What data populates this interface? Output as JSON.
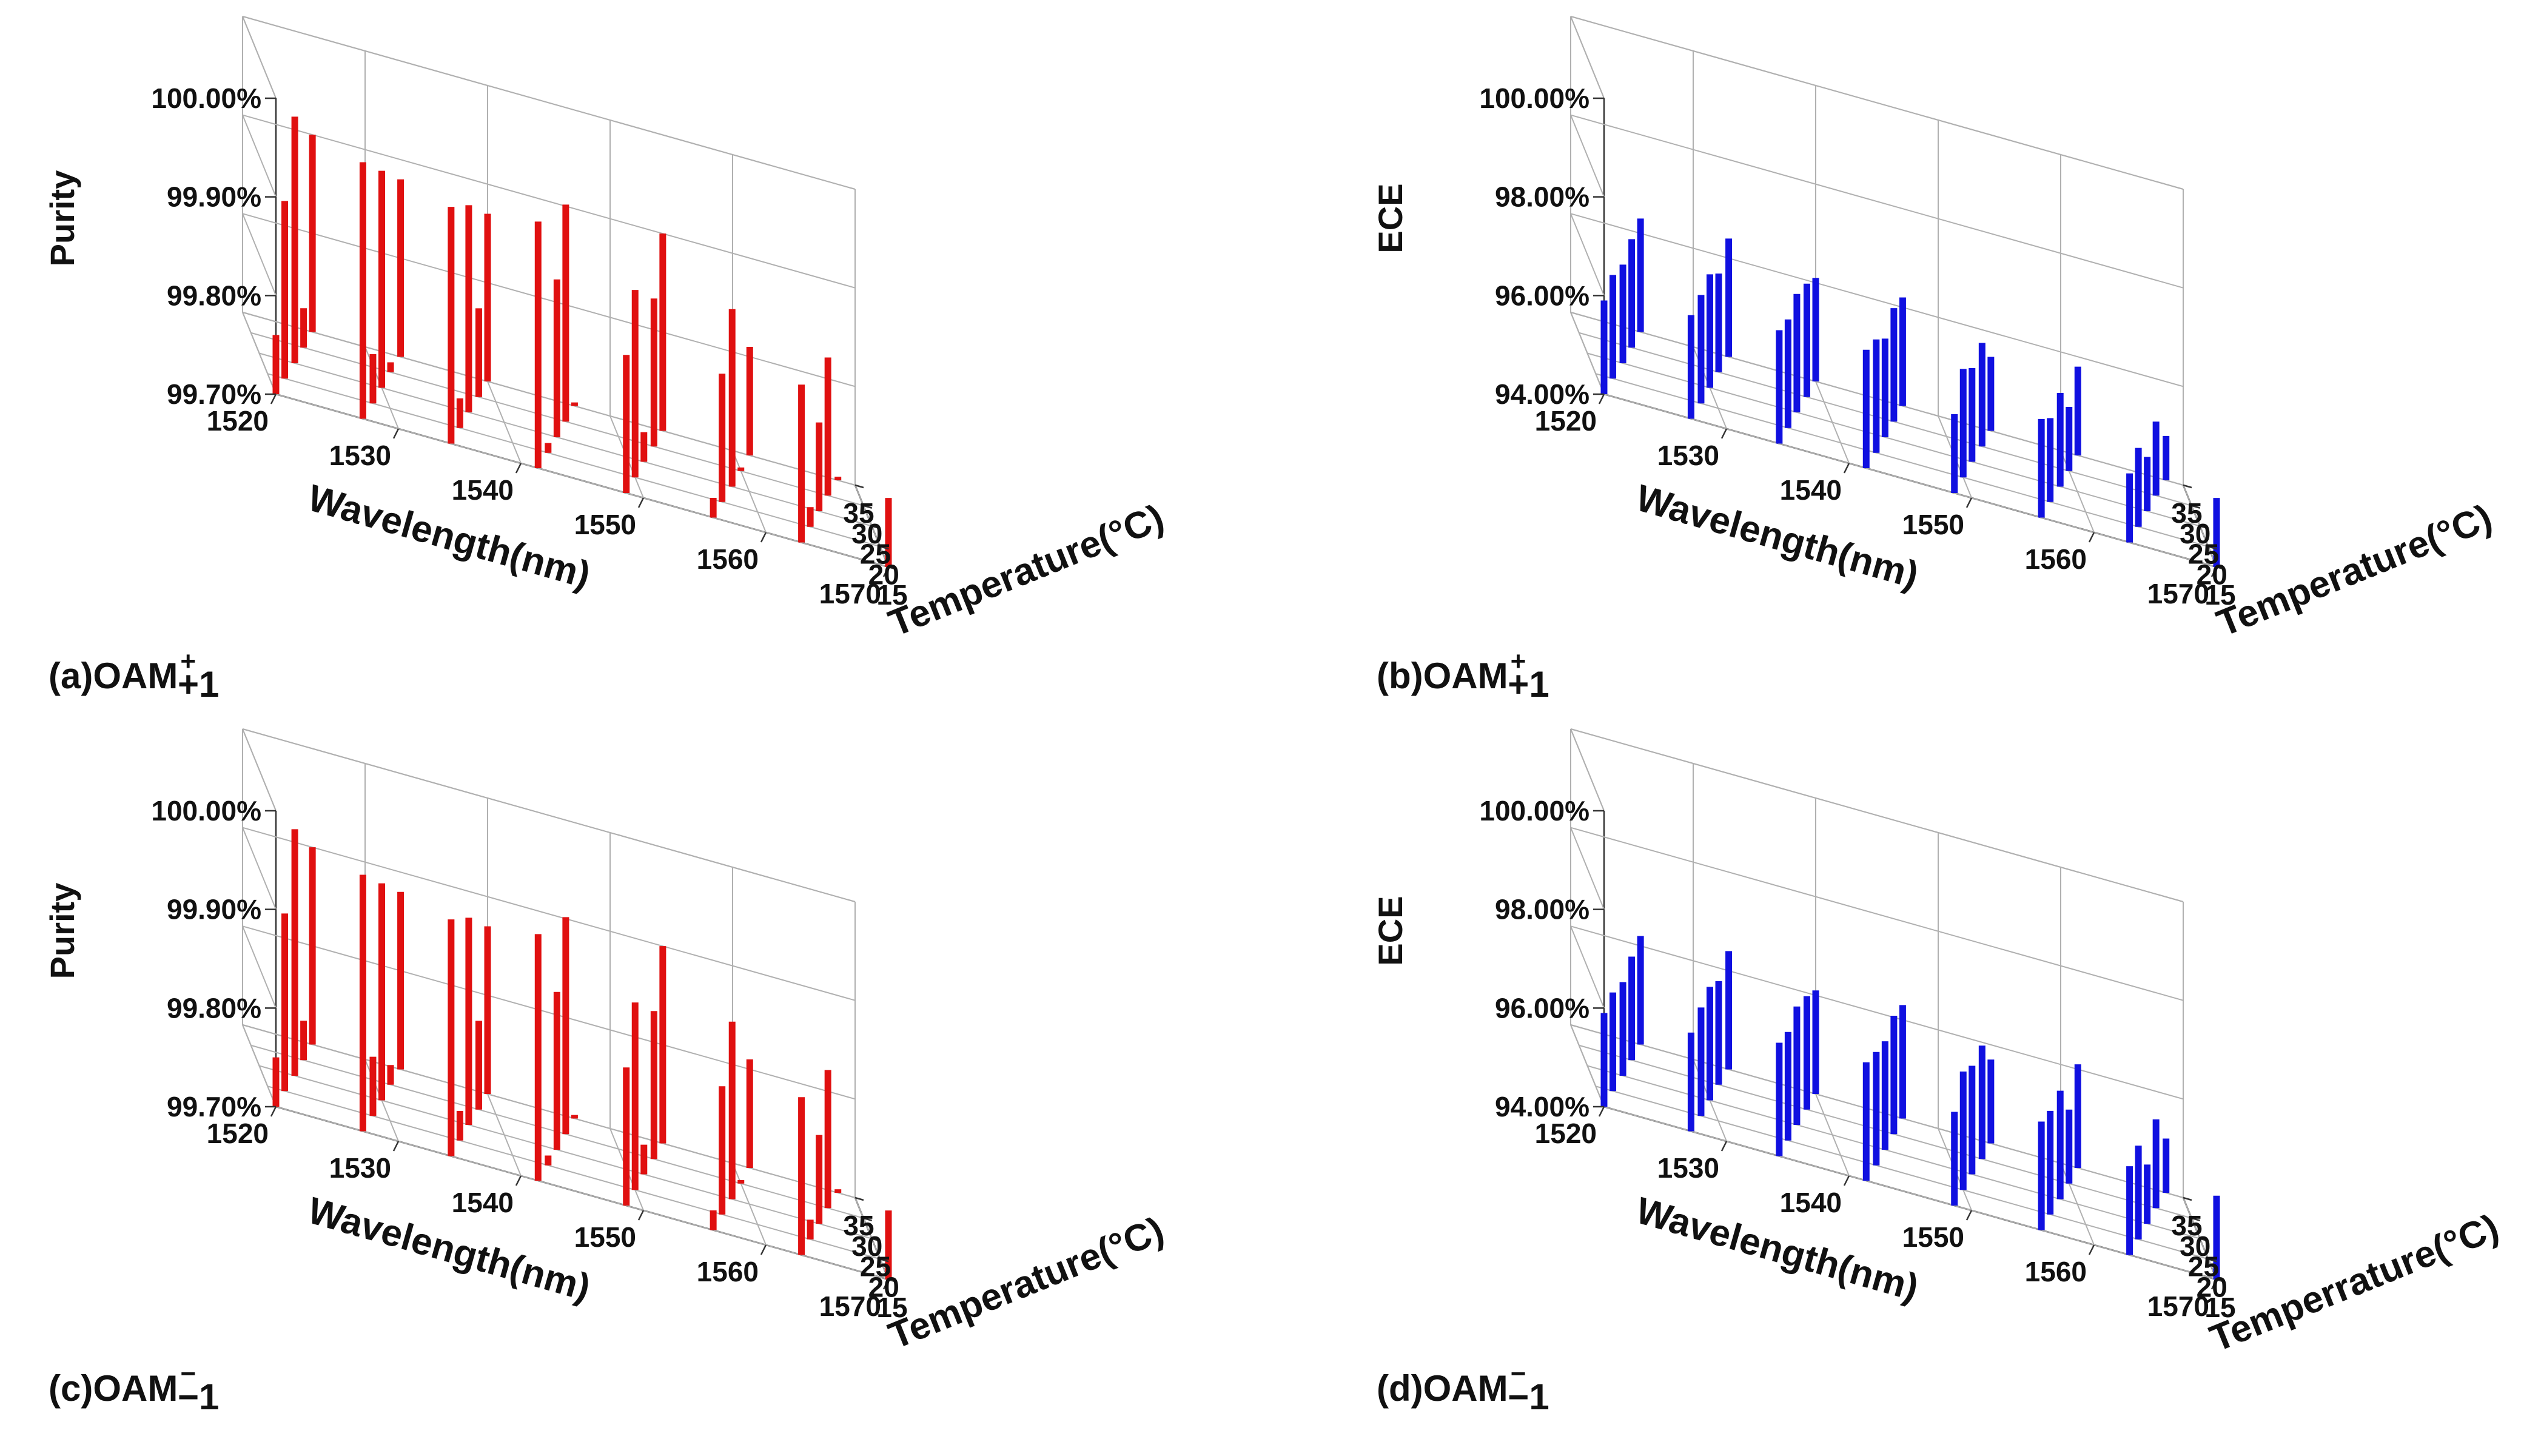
{
  "chart_data": [
    {
      "panel": "a",
      "type": "bar3d",
      "caption": {
        "prefix": "(a)OAM",
        "sup": "+",
        "sub": "+1"
      },
      "ylabel": "Purity",
      "xlabel": "Wavelength(nm)",
      "zlabel": "Temperature(°C)",
      "ylim": [
        99.7,
        100.0
      ],
      "yticks": [
        "100.00%",
        "99.90%",
        "99.80%",
        "99.70%"
      ],
      "xticks": [
        "1520",
        "1530",
        "1540",
        "1550",
        "1560",
        "1570"
      ],
      "zticks": [
        "15",
        "20",
        "25",
        "30",
        "35"
      ],
      "color": "#e01010",
      "wavelengths": [
        1520,
        1521.4,
        1522.9,
        1524.3,
        1525.7,
        1527.1,
        1528.6,
        1530,
        1531.4,
        1532.9,
        1534.3,
        1535.7,
        1537.1,
        1538.6,
        1540,
        1541.4,
        1542.9,
        1544.3,
        1545.7,
        1547.1,
        1548.6,
        1550,
        1551.4,
        1552.9,
        1554.3,
        1555.7,
        1557.1,
        1558.6,
        1560,
        1561.4,
        1562.9,
        1564.3,
        1565.7,
        1567.1,
        1568.6,
        1570
      ],
      "temperatures": [
        15,
        20,
        25,
        30,
        35
      ],
      "values": [
        99.76,
        99.88,
        99.95,
        99.74,
        99.9,
        99.96,
        99.75,
        99.92,
        99.71,
        99.88,
        99.94,
        99.73,
        99.91,
        99.79,
        99.87,
        99.95,
        99.71,
        99.86,
        99.92,
        99.7,
        99.84,
        99.89,
        99.73,
        99.85,
        99.9,
        99.72,
        99.83,
        99.88,
        99.7,
        99.81,
        99.86,
        99.72,
        99.79,
        99.84,
        99.7,
        99.77
      ]
    },
    {
      "panel": "b",
      "type": "bar3d",
      "caption": {
        "prefix": "(b)OAM",
        "sup": "+",
        "sub": "+1"
      },
      "ylabel": "ECE",
      "xlabel": "Wavelength(nm)",
      "zlabel": "Temperature(°C)",
      "ylim": [
        94.0,
        100.0
      ],
      "yticks": [
        "100.00%",
        "98.00%",
        "96.00%",
        "94.00%"
      ],
      "xticks": [
        "1520",
        "1530",
        "1540",
        "1550",
        "1560",
        "1570"
      ],
      "zticks": [
        "15",
        "20",
        "25",
        "30",
        "35"
      ],
      "color": "#1010e0",
      "wavelengths": [
        1520,
        1521.4,
        1522.9,
        1524.3,
        1525.7,
        1527.1,
        1528.6,
        1530,
        1531.4,
        1532.9,
        1534.3,
        1535.7,
        1537.1,
        1538.6,
        1540,
        1541.4,
        1542.9,
        1544.3,
        1545.7,
        1547.1,
        1548.6,
        1550,
        1551.4,
        1552.9,
        1554.3,
        1555.7,
        1557.1,
        1558.6,
        1560,
        1561.4,
        1562.9,
        1564.3,
        1565.7,
        1567.1,
        1568.6,
        1570
      ],
      "temperatures": [
        15,
        20,
        25,
        30,
        35
      ],
      "values": [
        95.9,
        96.1,
        96.0,
        96.2,
        96.3,
        96.1,
        96.2,
        96.3,
        96.0,
        96.4,
        96.3,
        96.2,
        96.4,
        96.3,
        96.1,
        96.4,
        96.3,
        96.0,
        96.3,
        96.2,
        95.6,
        96.2,
        95.9,
        96.1,
        95.5,
        96.0,
        95.7,
        95.9,
        95.3,
        95.8,
        95.4,
        95.6,
        95.1,
        95.5,
        94.9,
        95.4
      ]
    },
    {
      "panel": "c",
      "type": "bar3d",
      "caption": {
        "prefix": "(c)OAM",
        "sup": "−",
        "sub": "−1"
      },
      "ylabel": "Purity",
      "xlabel": "Wavelength(nm)",
      "zlabel": "Temperature(°C)",
      "ylim": [
        99.7,
        100.0
      ],
      "yticks": [
        "100.00%",
        "99.90%",
        "99.80%",
        "99.70%"
      ],
      "xticks": [
        "1520",
        "1530",
        "1540",
        "1550",
        "1560",
        "1570"
      ],
      "zticks": [
        "15",
        "20",
        "25",
        "30",
        "35"
      ],
      "color": "#e01010",
      "wavelengths": [
        1520,
        1521.4,
        1522.9,
        1524.3,
        1525.7,
        1527.1,
        1528.6,
        1530,
        1531.4,
        1532.9,
        1534.3,
        1535.7,
        1537.1,
        1538.6,
        1540,
        1541.4,
        1542.9,
        1544.3,
        1545.7,
        1547.1,
        1548.6,
        1550,
        1551.4,
        1552.9,
        1554.3,
        1555.7,
        1557.1,
        1558.6,
        1560,
        1561.4,
        1562.9,
        1564.3,
        1565.7,
        1567.1,
        1568.6,
        1570
      ],
      "temperatures": [
        15,
        20,
        25,
        30,
        35
      ],
      "values": [
        99.75,
        99.88,
        99.95,
        99.74,
        99.9,
        99.96,
        99.76,
        99.92,
        99.72,
        99.88,
        99.94,
        99.73,
        99.91,
        99.79,
        99.87,
        99.95,
        99.71,
        99.86,
        99.92,
        99.7,
        99.84,
        99.89,
        99.73,
        99.85,
        99.9,
        99.72,
        99.83,
        99.88,
        99.7,
        99.81,
        99.86,
        99.72,
        99.79,
        99.84,
        99.7,
        99.77
      ]
    },
    {
      "panel": "d",
      "type": "bar3d",
      "caption": {
        "prefix": "(d)OAM",
        "sup": "−",
        "sub": "−1"
      },
      "ylabel": "ECE",
      "xlabel": "Wavelength(nm)",
      "zlabel": "Temperrature(°C)",
      "ylim": [
        94.0,
        100.0
      ],
      "yticks": [
        "100.00%",
        "98.00%",
        "96.00%",
        "94.00%"
      ],
      "xticks": [
        "1520",
        "1530",
        "1540",
        "1550",
        "1560",
        "1570"
      ],
      "zticks": [
        "15",
        "20",
        "25",
        "30",
        "35"
      ],
      "color": "#1010e0",
      "wavelengths": [
        1520,
        1521.4,
        1522.9,
        1524.3,
        1525.7,
        1527.1,
        1528.6,
        1530,
        1531.4,
        1532.9,
        1534.3,
        1535.7,
        1537.1,
        1538.6,
        1540,
        1541.4,
        1542.9,
        1544.3,
        1545.7,
        1547.1,
        1548.6,
        1550,
        1551.4,
        1552.9,
        1554.3,
        1555.7,
        1557.1,
        1558.6,
        1560,
        1561.4,
        1562.9,
        1564.3,
        1565.7,
        1567.1,
        1568.6,
        1570
      ],
      "temperatures": [
        15,
        20,
        25,
        30,
        35
      ],
      "values": [
        95.9,
        96.0,
        95.9,
        96.1,
        96.2,
        96.0,
        96.2,
        96.3,
        96.1,
        96.4,
        96.3,
        96.2,
        96.4,
        96.3,
        96.1,
        96.4,
        96.3,
        96.2,
        96.4,
        96.3,
        95.9,
        96.4,
        96.2,
        96.3,
        95.7,
        96.2,
        96.1,
        96.2,
        95.5,
        96.1,
        95.8,
        95.9,
        95.2,
        95.8,
        95.1,
        95.7
      ]
    }
  ]
}
